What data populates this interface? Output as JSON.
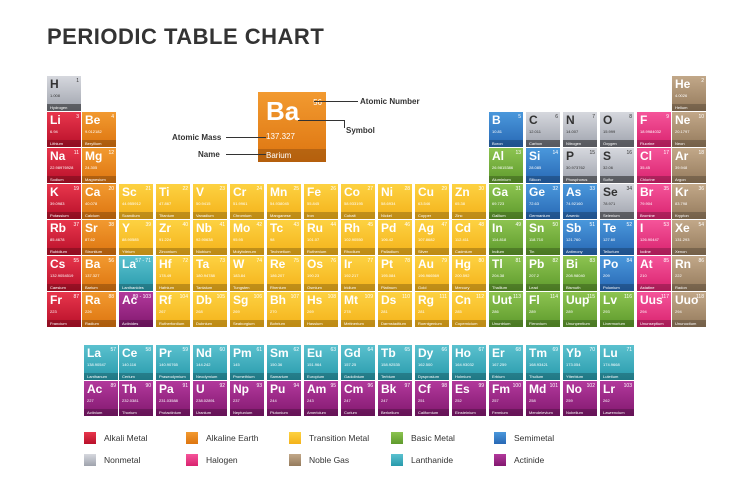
{
  "title": "PERIODIC TABLE CHART",
  "key": {
    "symbol": "Ba",
    "number": "56",
    "mass": "137.327",
    "name": "Barium",
    "callouts": {
      "atomic_number": "Atomic Number",
      "symbol": "Symbol",
      "atomic_mass": "Atomic Mass",
      "name": "Name"
    }
  },
  "elements": [
    {
      "s": "H",
      "n": "1",
      "m": "1.008",
      "nm": "Hydrogen",
      "c": "nonmetal"
    },
    {
      "s": "He",
      "n": "2",
      "m": "4.0026",
      "nm": "Helium",
      "c": "noble"
    },
    {
      "s": "Li",
      "n": "3",
      "m": "6.94",
      "nm": "Lithium",
      "c": "alkali"
    },
    {
      "s": "Be",
      "n": "4",
      "m": "9.012182",
      "nm": "Beryllium",
      "c": "alkaline"
    },
    {
      "s": "B",
      "n": "5",
      "m": "10.81",
      "nm": "Boron",
      "c": "semi"
    },
    {
      "s": "C",
      "n": "6",
      "m": "12.011",
      "nm": "Carbon",
      "c": "nonmetal"
    },
    {
      "s": "N",
      "n": "7",
      "m": "14.007",
      "nm": "Nitrogen",
      "c": "nonmetal"
    },
    {
      "s": "O",
      "n": "8",
      "m": "15.999",
      "nm": "Oxygen",
      "c": "nonmetal"
    },
    {
      "s": "F",
      "n": "9",
      "m": "18.9984032",
      "nm": "Fluorine",
      "c": "halogen"
    },
    {
      "s": "Ne",
      "n": "10",
      "m": "20.1797",
      "nm": "Neon",
      "c": "noble"
    },
    {
      "s": "Na",
      "n": "11",
      "m": "22.98976928",
      "nm": "Sodium",
      "c": "alkali"
    },
    {
      "s": "Mg",
      "n": "12",
      "m": "24.305",
      "nm": "Magnesium",
      "c": "alkaline"
    },
    {
      "s": "Al",
      "n": "13",
      "m": "26.9815386",
      "nm": "Aluminium",
      "c": "basic"
    },
    {
      "s": "Si",
      "n": "14",
      "m": "28.085",
      "nm": "Silicon",
      "c": "semi"
    },
    {
      "s": "P",
      "n": "15",
      "m": "30.973762",
      "nm": "Phosphorus",
      "c": "nonmetal"
    },
    {
      "s": "S",
      "n": "16",
      "m": "32.06",
      "nm": "Sulfur",
      "c": "nonmetal"
    },
    {
      "s": "Cl",
      "n": "17",
      "m": "35.45",
      "nm": "Chlorine",
      "c": "halogen"
    },
    {
      "s": "Ar",
      "n": "18",
      "m": "39.948",
      "nm": "Argon",
      "c": "noble"
    },
    {
      "s": "K",
      "n": "19",
      "m": "39.0983",
      "nm": "Potassium",
      "c": "alkali"
    },
    {
      "s": "Ca",
      "n": "20",
      "m": "40.078",
      "nm": "Calcium",
      "c": "alkaline"
    },
    {
      "s": "Sc",
      "n": "21",
      "m": "44.955912",
      "nm": "Scandium",
      "c": "transition"
    },
    {
      "s": "Ti",
      "n": "22",
      "m": "47.867",
      "nm": "Titanium",
      "c": "transition"
    },
    {
      "s": "V",
      "n": "23",
      "m": "50.9415",
      "nm": "Vanadium",
      "c": "transition"
    },
    {
      "s": "Cr",
      "n": "24",
      "m": "51.9961",
      "nm": "Chromium",
      "c": "transition"
    },
    {
      "s": "Mn",
      "n": "25",
      "m": "54.938045",
      "nm": "Manganese",
      "c": "transition"
    },
    {
      "s": "Fe",
      "n": "26",
      "m": "55.845",
      "nm": "Iron",
      "c": "transition"
    },
    {
      "s": "Co",
      "n": "27",
      "m": "58.933195",
      "nm": "Cobalt",
      "c": "transition"
    },
    {
      "s": "Ni",
      "n": "28",
      "m": "58.6934",
      "nm": "Nickel",
      "c": "transition"
    },
    {
      "s": "Cu",
      "n": "29",
      "m": "63.546",
      "nm": "Copper",
      "c": "transition"
    },
    {
      "s": "Zn",
      "n": "30",
      "m": "65.38",
      "nm": "Zinc",
      "c": "transition"
    },
    {
      "s": "Ga",
      "n": "31",
      "m": "69.723",
      "nm": "Gallium",
      "c": "basic"
    },
    {
      "s": "Ge",
      "n": "32",
      "m": "72.63",
      "nm": "Germanium",
      "c": "semi"
    },
    {
      "s": "As",
      "n": "33",
      "m": "74.92160",
      "nm": "Arsenic",
      "c": "semi"
    },
    {
      "s": "Se",
      "n": "34",
      "m": "78.971",
      "nm": "Selenium",
      "c": "nonmetal"
    },
    {
      "s": "Br",
      "n": "35",
      "m": "79.904",
      "nm": "Bromine",
      "c": "halogen"
    },
    {
      "s": "Kr",
      "n": "36",
      "m": "83.798",
      "nm": "Krypton",
      "c": "noble"
    },
    {
      "s": "Rb",
      "n": "37",
      "m": "85.4678",
      "nm": "Rubidium",
      "c": "alkali"
    },
    {
      "s": "Sr",
      "n": "38",
      "m": "87.62",
      "nm": "Strontium",
      "c": "alkaline"
    },
    {
      "s": "Y",
      "n": "39",
      "m": "88.90585",
      "nm": "Yttrium",
      "c": "transition"
    },
    {
      "s": "Zr",
      "n": "40",
      "m": "91.224",
      "nm": "Zirconium",
      "c": "transition"
    },
    {
      "s": "Nb",
      "n": "41",
      "m": "92.90638",
      "nm": "Niobium",
      "c": "transition"
    },
    {
      "s": "Mo",
      "n": "42",
      "m": "95.95",
      "nm": "Molybdenum",
      "c": "transition"
    },
    {
      "s": "Tc",
      "n": "43",
      "m": "98",
      "nm": "Technetium",
      "c": "transition"
    },
    {
      "s": "Ru",
      "n": "44",
      "m": "101.07",
      "nm": "Ruthenium",
      "c": "transition"
    },
    {
      "s": "Rh",
      "n": "45",
      "m": "102.90550",
      "nm": "Rhodium",
      "c": "transition"
    },
    {
      "s": "Pd",
      "n": "46",
      "m": "106.42",
      "nm": "Palladium",
      "c": "transition"
    },
    {
      "s": "Ag",
      "n": "47",
      "m": "107.8682",
      "nm": "Silver",
      "c": "transition"
    },
    {
      "s": "Cd",
      "n": "48",
      "m": "112.411",
      "nm": "Cadmium",
      "c": "transition"
    },
    {
      "s": "In",
      "n": "49",
      "m": "114.818",
      "nm": "Indium",
      "c": "basic"
    },
    {
      "s": "Sn",
      "n": "50",
      "m": "118.710",
      "nm": "Tin",
      "c": "basic"
    },
    {
      "s": "Sb",
      "n": "51",
      "m": "121.760",
      "nm": "Antimony",
      "c": "semi"
    },
    {
      "s": "Te",
      "n": "52",
      "m": "127.60",
      "nm": "Tellurium",
      "c": "semi"
    },
    {
      "s": "I",
      "n": "53",
      "m": "126.90447",
      "nm": "Iodine",
      "c": "halogen"
    },
    {
      "s": "Xe",
      "n": "54",
      "m": "131.293",
      "nm": "Xenon",
      "c": "noble"
    },
    {
      "s": "Cs",
      "n": "55",
      "m": "132.9054519",
      "nm": "Caesium",
      "c": "alkali"
    },
    {
      "s": "Ba",
      "n": "56",
      "m": "137.327",
      "nm": "Barium",
      "c": "alkaline"
    },
    {
      "s": "La",
      "n": "57 - 71",
      "m": "",
      "nm": "Lanthanides",
      "c": "lanth"
    },
    {
      "s": "Hf",
      "n": "72",
      "m": "178.49",
      "nm": "Hafnium",
      "c": "transition"
    },
    {
      "s": "Ta",
      "n": "73",
      "m": "180.94788",
      "nm": "Tantalum",
      "c": "transition"
    },
    {
      "s": "W",
      "n": "74",
      "m": "183.84",
      "nm": "Tungsten",
      "c": "transition"
    },
    {
      "s": "Re",
      "n": "75",
      "m": "186.207",
      "nm": "Rhenium",
      "c": "transition"
    },
    {
      "s": "Os",
      "n": "76",
      "m": "190.23",
      "nm": "Osmium",
      "c": "transition"
    },
    {
      "s": "Ir",
      "n": "77",
      "m": "192.217",
      "nm": "Iridium",
      "c": "transition"
    },
    {
      "s": "Pt",
      "n": "78",
      "m": "195.084",
      "nm": "Platinum",
      "c": "transition"
    },
    {
      "s": "Au",
      "n": "79",
      "m": "196.966569",
      "nm": "Gold",
      "c": "transition"
    },
    {
      "s": "Hg",
      "n": "80",
      "m": "200.592",
      "nm": "Mercury",
      "c": "transition"
    },
    {
      "s": "Tl",
      "n": "81",
      "m": "204.38",
      "nm": "Thallium",
      "c": "basic"
    },
    {
      "s": "Pb",
      "n": "82",
      "m": "207.2",
      "nm": "Lead",
      "c": "basic"
    },
    {
      "s": "Bi",
      "n": "83",
      "m": "208.98040",
      "nm": "Bismuth",
      "c": "basic"
    },
    {
      "s": "Po",
      "n": "84",
      "m": "209",
      "nm": "Polonium",
      "c": "semi"
    },
    {
      "s": "At",
      "n": "85",
      "m": "210",
      "nm": "Astatine",
      "c": "halogen"
    },
    {
      "s": "Rn",
      "n": "86",
      "m": "222",
      "nm": "Radon",
      "c": "noble"
    },
    {
      "s": "Fr",
      "n": "87",
      "m": "223",
      "nm": "Francium",
      "c": "alkali"
    },
    {
      "s": "Ra",
      "n": "88",
      "m": "226",
      "nm": "Radium",
      "c": "alkaline"
    },
    {
      "s": "Ac",
      "n": "89 - 103",
      "m": "",
      "nm": "Actinides",
      "c": "actin"
    },
    {
      "s": "Rf",
      "n": "104",
      "m": "267",
      "nm": "Rutherfordium",
      "c": "transition"
    },
    {
      "s": "Db",
      "n": "105",
      "m": "268",
      "nm": "Dubnium",
      "c": "transition"
    },
    {
      "s": "Sg",
      "n": "106",
      "m": "269",
      "nm": "Seaborgium",
      "c": "transition"
    },
    {
      "s": "Bh",
      "n": "107",
      "m": "270",
      "nm": "Bohrium",
      "c": "transition"
    },
    {
      "s": "Hs",
      "n": "108",
      "m": "269",
      "nm": "Hassium",
      "c": "transition"
    },
    {
      "s": "Mt",
      "n": "109",
      "m": "278",
      "nm": "Meitnerium",
      "c": "transition"
    },
    {
      "s": "Ds",
      "n": "110",
      "m": "281",
      "nm": "Darmstadtium",
      "c": "transition"
    },
    {
      "s": "Rg",
      "n": "111",
      "m": "281",
      "nm": "Roentgenium",
      "c": "transition"
    },
    {
      "s": "Cn",
      "n": "112",
      "m": "285",
      "nm": "Copernicium",
      "c": "transition"
    },
    {
      "s": "Uut",
      "n": "113",
      "m": "286",
      "nm": "Ununtrium",
      "c": "basic"
    },
    {
      "s": "Fl",
      "n": "114",
      "m": "289",
      "nm": "Flerovium",
      "c": "basic"
    },
    {
      "s": "Uup",
      "n": "115",
      "m": "289",
      "nm": "Ununpentium",
      "c": "basic"
    },
    {
      "s": "Lv",
      "n": "116",
      "m": "293",
      "nm": "Livermorium",
      "c": "basic"
    },
    {
      "s": "Uus",
      "n": "117",
      "m": "294",
      "nm": "Ununseptium",
      "c": "halogen"
    },
    {
      "s": "Uuo",
      "n": "118",
      "m": "294",
      "nm": "Ununoctium",
      "c": "noble"
    },
    {
      "s": "La",
      "n": "57",
      "m": "138.90547",
      "nm": "Lanthanum",
      "c": "lanth"
    },
    {
      "s": "Ce",
      "n": "58",
      "m": "140.116",
      "nm": "Cerium",
      "c": "lanth"
    },
    {
      "s": "Pr",
      "n": "59",
      "m": "140.90765",
      "nm": "Praseodymium",
      "c": "lanth"
    },
    {
      "s": "Nd",
      "n": "60",
      "m": "144.242",
      "nm": "Neodymium",
      "c": "lanth"
    },
    {
      "s": "Pm",
      "n": "61",
      "m": "145",
      "nm": "Promethium",
      "c": "lanth"
    },
    {
      "s": "Sm",
      "n": "62",
      "m": "150.36",
      "nm": "Samarium",
      "c": "lanth"
    },
    {
      "s": "Eu",
      "n": "63",
      "m": "151.964",
      "nm": "Europium",
      "c": "lanth"
    },
    {
      "s": "Gd",
      "n": "64",
      "m": "157.25",
      "nm": "Gadolinium",
      "c": "lanth"
    },
    {
      "s": "Tb",
      "n": "65",
      "m": "158.92535",
      "nm": "Terbium",
      "c": "lanth"
    },
    {
      "s": "Dy",
      "n": "66",
      "m": "162.500",
      "nm": "Dysprosium",
      "c": "lanth"
    },
    {
      "s": "Ho",
      "n": "67",
      "m": "164.93032",
      "nm": "Holmium",
      "c": "lanth"
    },
    {
      "s": "Er",
      "n": "68",
      "m": "167.259",
      "nm": "Erbium",
      "c": "lanth"
    },
    {
      "s": "Tm",
      "n": "69",
      "m": "168.93421",
      "nm": "Thulium",
      "c": "lanth"
    },
    {
      "s": "Yb",
      "n": "70",
      "m": "173.054",
      "nm": "Ytterbium",
      "c": "lanth"
    },
    {
      "s": "Lu",
      "n": "71",
      "m": "174.9668",
      "nm": "Lutetium",
      "c": "lanth"
    },
    {
      "s": "Ac",
      "n": "89",
      "m": "227",
      "nm": "Actinium",
      "c": "actin"
    },
    {
      "s": "Th",
      "n": "90",
      "m": "232.0381",
      "nm": "Thorium",
      "c": "actin"
    },
    {
      "s": "Pa",
      "n": "91",
      "m": "231.03588",
      "nm": "Protactinium",
      "c": "actin"
    },
    {
      "s": "U",
      "n": "92",
      "m": "238.02891",
      "nm": "Uranium",
      "c": "actin"
    },
    {
      "s": "Np",
      "n": "93",
      "m": "237",
      "nm": "Neptunium",
      "c": "actin"
    },
    {
      "s": "Pu",
      "n": "94",
      "m": "244",
      "nm": "Plutonium",
      "c": "actin"
    },
    {
      "s": "Am",
      "n": "95",
      "m": "243",
      "nm": "Americium",
      "c": "actin"
    },
    {
      "s": "Cm",
      "n": "96",
      "m": "247",
      "nm": "Curium",
      "c": "actin"
    },
    {
      "s": "Bk",
      "n": "97",
      "m": "247",
      "nm": "Berkelium",
      "c": "actin"
    },
    {
      "s": "Cf",
      "n": "98",
      "m": "251",
      "nm": "Californium",
      "c": "actin"
    },
    {
      "s": "Es",
      "n": "99",
      "m": "252",
      "nm": "Einsteinium",
      "c": "actin"
    },
    {
      "s": "Fm",
      "n": "100",
      "m": "257",
      "nm": "Fermium",
      "c": "actin"
    },
    {
      "s": "Md",
      "n": "101",
      "m": "258",
      "nm": "Mendelevium",
      "c": "actin"
    },
    {
      "s": "No",
      "n": "102",
      "m": "259",
      "nm": "Nobelium",
      "c": "actin"
    },
    {
      "s": "Lr",
      "n": "103",
      "m": "262",
      "nm": "Lawrencium",
      "c": "actin"
    }
  ],
  "legend": [
    {
      "key": "alkali",
      "label": "Alkali Metal"
    },
    {
      "key": "alkaline",
      "label": "Alkaline Earth"
    },
    {
      "key": "transition",
      "label": "Transition Metal"
    },
    {
      "key": "basic",
      "label": "Basic Metal"
    },
    {
      "key": "semi",
      "label": "Semimetal"
    },
    {
      "key": "nonmetal",
      "label": "Nonmetal"
    },
    {
      "key": "halogen",
      "label": "Halogen"
    },
    {
      "key": "noble",
      "label": "Noble Gas"
    },
    {
      "key": "lanth",
      "label": "Lanthanide"
    },
    {
      "key": "actin",
      "label": "Actinide"
    }
  ],
  "colors": {
    "alkali": "#d0213c",
    "alkaline": "#e8861f",
    "transition": "#f9c22e",
    "basic": "#76b03e",
    "semi": "#3a82cc",
    "nonmetal": "#bcbfc7",
    "halogen": "#e93d86",
    "noble": "#ab9173",
    "lanth": "#3fb0c0",
    "actin": "#9c2886"
  }
}
